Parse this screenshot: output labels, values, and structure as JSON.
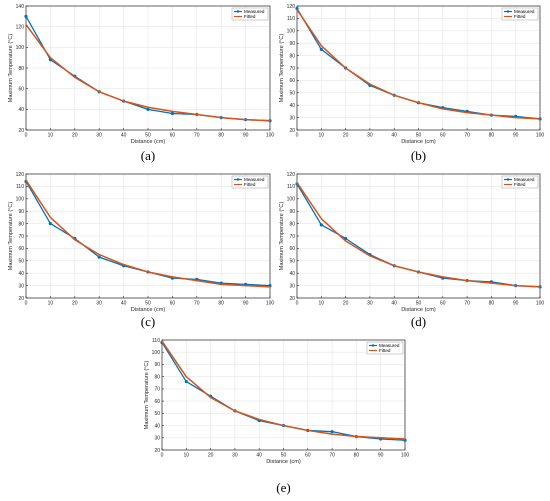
{
  "colors": {
    "measured": "#0072BD",
    "fitted": "#D95319",
    "grid": "#e6e6e6",
    "axis": "#262626"
  },
  "chart_data": [
    {
      "type": "line",
      "caption": "(a)",
      "xlabel": "Distance (cm)",
      "ylabel": "Maximum Temperature (°C)",
      "xlim": [
        0,
        100
      ],
      "ylim": [
        20,
        140
      ],
      "xticks": [
        0,
        10,
        20,
        30,
        40,
        50,
        60,
        70,
        80,
        90,
        100
      ],
      "yticks": [
        20,
        40,
        60,
        80,
        100,
        120,
        140
      ],
      "grid": true,
      "legend": "top-right",
      "x": [
        0,
        10,
        20,
        30,
        40,
        50,
        60,
        70,
        80,
        90,
        100
      ],
      "series": [
        {
          "name": "Measured",
          "marker": true,
          "values": [
            130,
            88,
            72,
            57,
            48,
            40,
            36,
            35,
            32,
            30,
            29
          ]
        },
        {
          "name": "Fitted",
          "marker": false,
          "values": [
            122,
            90,
            71,
            57,
            48,
            42,
            38,
            35,
            32,
            30,
            29
          ]
        }
      ]
    },
    {
      "type": "line",
      "caption": "(b)",
      "xlabel": "Distance (cm)",
      "ylabel": "Maximum Temperature (°C)",
      "xlim": [
        0,
        100
      ],
      "ylim": [
        20,
        120
      ],
      "xticks": [
        0,
        10,
        20,
        30,
        40,
        50,
        60,
        70,
        80,
        90,
        100
      ],
      "yticks": [
        20,
        30,
        40,
        50,
        60,
        70,
        80,
        90,
        100,
        110,
        120
      ],
      "grid": true,
      "legend": "top-right",
      "x": [
        0,
        10,
        20,
        30,
        40,
        50,
        60,
        70,
        80,
        90,
        100
      ],
      "series": [
        {
          "name": "Measured",
          "marker": true,
          "values": [
            118,
            85,
            70,
            56,
            48,
            42,
            38,
            35,
            32,
            31,
            29
          ]
        },
        {
          "name": "Fitted",
          "marker": false,
          "values": [
            117,
            88,
            70,
            57,
            48,
            42,
            37,
            34,
            32,
            30,
            29
          ]
        }
      ]
    },
    {
      "type": "line",
      "caption": "(c)",
      "xlabel": "Distance (cm)",
      "ylabel": "Maximum Temperature (°C)",
      "xlim": [
        0,
        100
      ],
      "ylim": [
        20,
        120
      ],
      "xticks": [
        0,
        10,
        20,
        30,
        40,
        50,
        60,
        70,
        80,
        90,
        100
      ],
      "yticks": [
        20,
        30,
        40,
        50,
        60,
        70,
        80,
        90,
        100,
        110,
        120
      ],
      "grid": true,
      "legend": "top-right",
      "x": [
        0,
        10,
        20,
        30,
        40,
        50,
        60,
        70,
        80,
        90,
        100
      ],
      "series": [
        {
          "name": "Measured",
          "marker": true,
          "values": [
            114,
            80,
            68,
            53,
            46,
            41,
            36,
            35,
            32,
            31,
            30
          ]
        },
        {
          "name": "Fitted",
          "marker": false,
          "values": [
            115,
            85,
            67,
            55,
            47,
            41,
            37,
            34,
            31,
            30,
            29
          ]
        }
      ]
    },
    {
      "type": "line",
      "caption": "(d)",
      "xlabel": "Distance (cm)",
      "ylabel": "Maximum Temperature (°C)",
      "xlim": [
        0,
        100
      ],
      "ylim": [
        20,
        120
      ],
      "xticks": [
        0,
        10,
        20,
        30,
        40,
        50,
        60,
        70,
        80,
        90,
        100
      ],
      "yticks": [
        20,
        30,
        40,
        50,
        60,
        70,
        80,
        90,
        100,
        110,
        120
      ],
      "grid": true,
      "legend": "top-right",
      "x": [
        0,
        10,
        20,
        30,
        40,
        50,
        60,
        70,
        80,
        90,
        100
      ],
      "series": [
        {
          "name": "Measured",
          "marker": true,
          "values": [
            112,
            79,
            68,
            55,
            46,
            41,
            36,
            34,
            33,
            30,
            29
          ]
        },
        {
          "name": "Fitted",
          "marker": false,
          "values": [
            113,
            84,
            66,
            54,
            46,
            41,
            37,
            34,
            32,
            30,
            29
          ]
        }
      ]
    },
    {
      "type": "line",
      "caption": "(e)",
      "xlabel": "Distance (cm)",
      "ylabel": "Maximum Temperature (°C)",
      "xlim": [
        0,
        100
      ],
      "ylim": [
        20,
        110
      ],
      "xticks": [
        0,
        10,
        20,
        30,
        40,
        50,
        60,
        70,
        80,
        90,
        100
      ],
      "yticks": [
        20,
        30,
        40,
        50,
        60,
        70,
        80,
        90,
        100,
        110
      ],
      "grid": true,
      "legend": "top-right",
      "x": [
        0,
        10,
        20,
        30,
        40,
        50,
        60,
        70,
        80,
        90,
        100
      ],
      "series": [
        {
          "name": "Measured",
          "marker": true,
          "values": [
            108,
            76,
            64,
            52,
            44,
            40,
            36,
            35,
            31,
            29,
            28
          ]
        },
        {
          "name": "Fitted",
          "marker": false,
          "values": [
            109,
            80,
            63,
            52,
            45,
            40,
            36,
            33,
            31,
            30,
            29
          ]
        }
      ]
    }
  ]
}
